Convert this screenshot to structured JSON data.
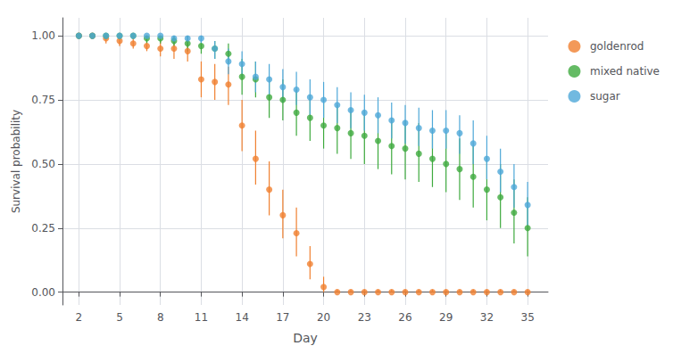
{
  "chart_data": {
    "type": "scatter",
    "xlabel": "Day",
    "ylabel": "Survival probability",
    "x": [
      2,
      3,
      4,
      5,
      6,
      7,
      8,
      9,
      10,
      11,
      12,
      13,
      14,
      15,
      16,
      17,
      18,
      19,
      20,
      21,
      22,
      23,
      24,
      25,
      26,
      27,
      28,
      29,
      30,
      31,
      32,
      33,
      34,
      35
    ],
    "series": [
      {
        "name": "goldenrod",
        "color": "#F08030",
        "marker": "circle",
        "values": [
          1.0,
          1.0,
          0.99,
          0.98,
          0.97,
          0.96,
          0.95,
          0.95,
          0.94,
          0.83,
          0.82,
          0.81,
          0.65,
          0.52,
          0.4,
          0.3,
          0.23,
          0.11,
          0.02,
          0.0,
          0.0,
          0.0,
          0.0,
          0.0,
          0.0,
          0.0,
          0.0,
          0.0,
          0.0,
          0.0,
          0.0,
          0.0,
          0.0,
          0.0
        ],
        "lower": [
          1.0,
          1.0,
          0.97,
          0.96,
          0.95,
          0.94,
          0.92,
          0.91,
          0.9,
          0.76,
          0.75,
          0.73,
          0.55,
          0.42,
          0.3,
          0.21,
          0.14,
          0.05,
          0.0,
          0.0,
          0.0,
          0.0,
          0.0,
          0.0,
          0.0,
          0.0,
          0.0,
          0.0,
          0.0,
          0.0,
          0.0,
          0.0,
          0.0,
          0.0
        ],
        "upper": [
          1.0,
          1.0,
          1.0,
          1.0,
          1.0,
          0.99,
          0.98,
          0.98,
          0.97,
          0.9,
          0.89,
          0.88,
          0.75,
          0.63,
          0.51,
          0.4,
          0.33,
          0.18,
          0.06,
          0.01,
          0.01,
          0.01,
          0.01,
          0.01,
          0.01,
          0.01,
          0.01,
          0.01,
          0.01,
          0.01,
          0.01,
          0.01,
          0.01,
          0.01
        ]
      },
      {
        "name": "mixed native",
        "color": "#3EAA3E",
        "marker": "circle",
        "values": [
          1.0,
          1.0,
          1.0,
          1.0,
          1.0,
          0.99,
          0.99,
          0.98,
          0.97,
          0.96,
          0.95,
          0.93,
          0.84,
          0.83,
          0.76,
          0.75,
          0.7,
          0.68,
          0.65,
          0.64,
          0.62,
          0.61,
          0.59,
          0.57,
          0.56,
          0.54,
          0.52,
          0.5,
          0.48,
          0.45,
          0.4,
          0.37,
          0.31,
          0.25
        ],
        "lower": [
          1.0,
          1.0,
          1.0,
          1.0,
          1.0,
          0.97,
          0.97,
          0.96,
          0.94,
          0.93,
          0.91,
          0.89,
          0.77,
          0.76,
          0.68,
          0.67,
          0.61,
          0.59,
          0.56,
          0.54,
          0.52,
          0.5,
          0.48,
          0.46,
          0.44,
          0.43,
          0.41,
          0.39,
          0.36,
          0.33,
          0.28,
          0.25,
          0.19,
          0.14
        ],
        "upper": [
          1.0,
          1.0,
          1.0,
          1.0,
          1.0,
          1.0,
          1.0,
          1.0,
          1.0,
          0.99,
          0.98,
          0.97,
          0.91,
          0.9,
          0.84,
          0.83,
          0.79,
          0.77,
          0.74,
          0.73,
          0.72,
          0.71,
          0.69,
          0.68,
          0.67,
          0.66,
          0.64,
          0.62,
          0.6,
          0.57,
          0.53,
          0.5,
          0.44,
          0.37
        ]
      },
      {
        "name": "sugar",
        "color": "#4EA8D8",
        "marker": "circle",
        "values": [
          1.0,
          1.0,
          1.0,
          1.0,
          1.0,
          1.0,
          1.0,
          0.99,
          0.99,
          0.99,
          0.95,
          0.9,
          0.89,
          0.84,
          0.83,
          0.8,
          0.79,
          0.76,
          0.75,
          0.73,
          0.71,
          0.7,
          0.69,
          0.67,
          0.66,
          0.64,
          0.63,
          0.63,
          0.62,
          0.58,
          0.52,
          0.47,
          0.41,
          0.34
        ],
        "lower": [
          1.0,
          1.0,
          1.0,
          1.0,
          1.0,
          1.0,
          1.0,
          0.97,
          0.97,
          0.97,
          0.91,
          0.85,
          0.84,
          0.78,
          0.77,
          0.74,
          0.73,
          0.69,
          0.68,
          0.66,
          0.64,
          0.63,
          0.62,
          0.6,
          0.58,
          0.57,
          0.56,
          0.56,
          0.54,
          0.5,
          0.44,
          0.39,
          0.33,
          0.26
        ],
        "upper": [
          1.0,
          1.0,
          1.0,
          1.0,
          1.0,
          1.0,
          1.0,
          1.0,
          1.0,
          1.0,
          0.98,
          0.95,
          0.94,
          0.9,
          0.89,
          0.87,
          0.86,
          0.83,
          0.82,
          0.8,
          0.78,
          0.77,
          0.76,
          0.74,
          0.73,
          0.72,
          0.71,
          0.71,
          0.69,
          0.67,
          0.61,
          0.56,
          0.5,
          0.43
        ]
      }
    ],
    "xlim": [
      0.8,
      36.5
    ],
    "xticks": [
      2,
      5,
      8,
      11,
      14,
      17,
      20,
      23,
      26,
      29,
      32,
      35
    ],
    "ylim": [
      -0.05,
      1.07
    ],
    "yticks": [
      {
        "value": 0,
        "label": "0.00"
      },
      0.25,
      {
        "value": 0.5,
        "label": "0.50"
      },
      0.75,
      {
        "value": 1,
        "label": "1.00"
      }
    ],
    "grid": true,
    "legend": "right"
  }
}
